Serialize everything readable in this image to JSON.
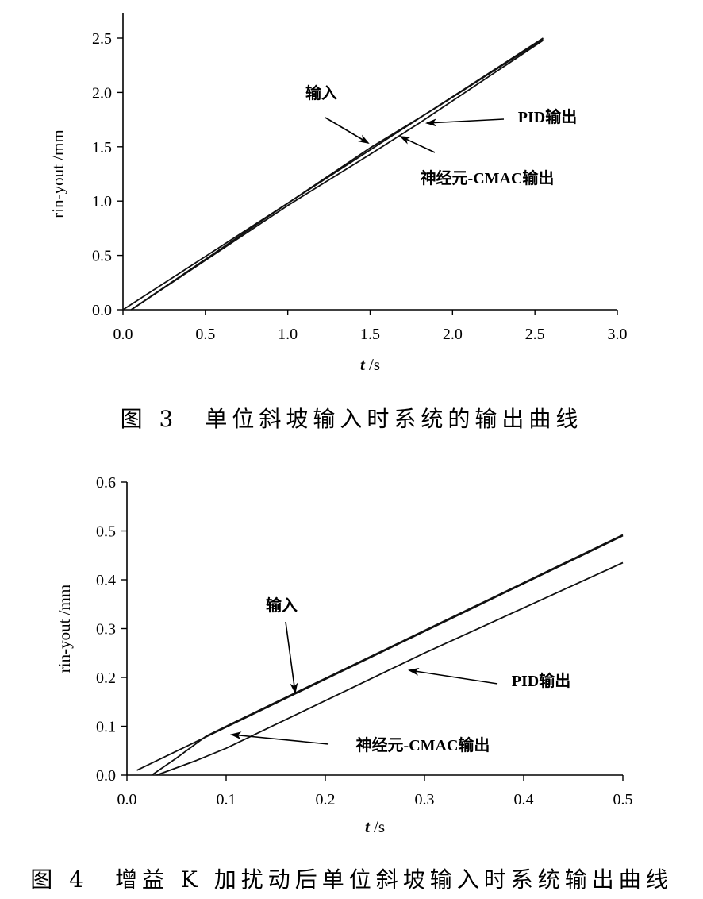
{
  "figures": [
    {
      "caption": "图 3　单位斜坡输入时系统的输出曲线",
      "chart_data": {
        "type": "line",
        "xlabel_italic": "t",
        "xlabel_unit": " /s",
        "ylabel": "rin-yout /mm",
        "xlim": [
          0,
          3.0
        ],
        "ylim": [
          0,
          2.5
        ],
        "xticks": [
          "0.0",
          "0.5",
          "1.0",
          "1.5",
          "2.0",
          "2.5",
          "3.0"
        ],
        "yticks": [
          "0.0",
          "0.5",
          "1.0",
          "1.5",
          "2.0",
          "2.5"
        ],
        "series": [
          {
            "name": "输入",
            "x": [
              0,
              2.55
            ],
            "y": [
              0,
              2.5
            ]
          },
          {
            "name": "PID输出",
            "x": [
              0.05,
              1.0,
              1.5,
              1.9,
              2.55
            ],
            "y": [
              0,
              0.98,
              1.49,
              1.86,
              2.49
            ]
          },
          {
            "name": "神经元-CMAC输出",
            "x": [
              0.05,
              1.0,
              1.5,
              1.8,
              2.55
            ],
            "y": [
              0,
              0.96,
              1.43,
              1.72,
              2.48
            ]
          }
        ],
        "annotations": [
          "输入",
          "PID输出",
          "神经元-CMAC输出"
        ]
      }
    },
    {
      "caption": "图 4　增益 K 加扰动后单位斜坡输入时系统输出曲线",
      "chart_data": {
        "type": "line",
        "xlabel_italic": "t",
        "xlabel_unit": " /s",
        "ylabel": "rin-yout /mm",
        "xlim": [
          0,
          0.5
        ],
        "ylim": [
          0,
          0.6
        ],
        "xticks": [
          "0.0",
          "0.1",
          "0.2",
          "0.3",
          "0.4",
          "0.5"
        ],
        "yticks": [
          "0.0",
          "0.1",
          "0.2",
          "0.3",
          "0.4",
          "0.5",
          "0.6"
        ],
        "series": [
          {
            "name": "输入",
            "x": [
              0.01,
              0.5
            ],
            "y": [
              0.01,
              0.49
            ]
          },
          {
            "name": "PID输出",
            "x": [
              0.03,
              0.07,
              0.1,
              0.3,
              0.5
            ],
            "y": [
              0,
              0.03,
              0.055,
              0.25,
              0.435
            ]
          },
          {
            "name": "神经元-CMAC输出",
            "x": [
              0.025,
              0.05,
              0.08,
              0.11,
              0.5
            ],
            "y": [
              0,
              0.035,
              0.08,
              0.11,
              0.492
            ]
          }
        ],
        "annotations": [
          "输入",
          "PID输出",
          "神经元-CMAC输出"
        ]
      }
    }
  ]
}
